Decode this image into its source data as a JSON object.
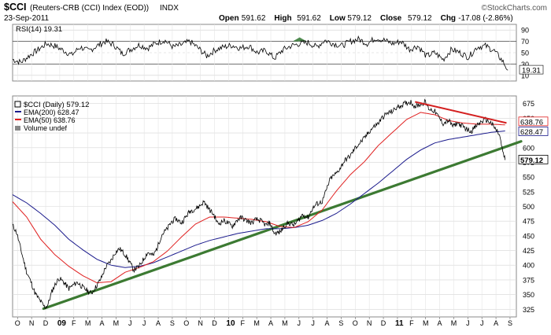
{
  "header": {
    "symbol": "$CCI",
    "name": "(Reuters-CRB (CCI) Index (EOD))",
    "exchange": "INDX",
    "date": "23-Sep-2011",
    "brand": "©StockCharts.com",
    "ohlc": [
      {
        "label": "Open",
        "value": "591.62"
      },
      {
        "label": "High",
        "value": "591.62"
      },
      {
        "label": "Low",
        "value": "579.12"
      },
      {
        "label": "Close",
        "value": "579.12"
      },
      {
        "label": "Chg",
        "value": "-17.08 (-2.86%)"
      }
    ]
  },
  "rsi": {
    "label": "RSI(14) 19.31",
    "last_tag": "19.31",
    "ticks": [
      90,
      70,
      50,
      30,
      10
    ],
    "overbought": 70,
    "oversold": 30,
    "baseline_ylim": [
      0,
      100
    ]
  },
  "legend": {
    "price": "$CCI (Daily) 579.12",
    "ema200": "EMA(200) 628.47",
    "ema50": "EMA(50) 638.76",
    "volume": "Volume undef"
  },
  "colors": {
    "price": "#000000",
    "ema200": "#1a1a8c",
    "ema50": "#e02020",
    "trendline": "#3c7a32",
    "resistance": "#d42020",
    "grid": "#d6d6d6",
    "frame": "#888888"
  },
  "tags": {
    "close": "579.12",
    "ema50": "638.76",
    "ema200": "628.47"
  },
  "chart_data": {
    "type": "line",
    "title": "$CCI (Reuters-CRB (CCI) Index (EOD)) INDX",
    "x_unit": "month index (0 = Oct 2008)",
    "x_range": [
      0,
      35.8
    ],
    "ylim": [
      312,
      688
    ],
    "y_ticks": [
      325,
      350,
      375,
      400,
      425,
      450,
      475,
      500,
      525,
      550,
      575,
      600,
      625,
      650,
      675
    ],
    "x_tick_labels": [
      "O",
      "N",
      "D",
      "09",
      "F",
      "M",
      "A",
      "M",
      "J",
      "J",
      "A",
      "S",
      "O",
      "N",
      "D",
      "10",
      "F",
      "M",
      "A",
      "M",
      "J",
      "J",
      "A",
      "S",
      "O",
      "N",
      "D",
      "11",
      "F",
      "M",
      "A",
      "M",
      "J",
      "J",
      "A",
      "S"
    ],
    "series": [
      {
        "name": "$CCI (Daily)",
        "anchors": [
          [
            0,
            468
          ],
          [
            0.3,
            455
          ],
          [
            0.6,
            425
          ],
          [
            1.0,
            388
          ],
          [
            1.3,
            372
          ],
          [
            1.6,
            352
          ],
          [
            2.0,
            338
          ],
          [
            2.3,
            328
          ],
          [
            2.5,
            332
          ],
          [
            2.8,
            356
          ],
          [
            3.0,
            366
          ],
          [
            3.3,
            378
          ],
          [
            3.6,
            372
          ],
          [
            4.0,
            360
          ],
          [
            4.3,
            366
          ],
          [
            4.6,
            371
          ],
          [
            5.0,
            362
          ],
          [
            5.3,
            357
          ],
          [
            5.6,
            352
          ],
          [
            6.0,
            366
          ],
          [
            6.3,
            378
          ],
          [
            6.6,
            396
          ],
          [
            7.0,
            408
          ],
          [
            7.3,
            422
          ],
          [
            7.6,
            428
          ],
          [
            8.0,
            418
          ],
          [
            8.3,
            406
          ],
          [
            8.6,
            392
          ],
          [
            9.0,
            398
          ],
          [
            9.3,
            410
          ],
          [
            9.6,
            422
          ],
          [
            10.0,
            416
          ],
          [
            10.3,
            431
          ],
          [
            10.6,
            452
          ],
          [
            11.0,
            462
          ],
          [
            11.3,
            474
          ],
          [
            11.6,
            479
          ],
          [
            12.0,
            472
          ],
          [
            12.3,
            482
          ],
          [
            12.6,
            492
          ],
          [
            13.0,
            496
          ],
          [
            13.3,
            501
          ],
          [
            13.6,
            508
          ],
          [
            14.0,
            494
          ],
          [
            14.3,
            486
          ],
          [
            14.6,
            470
          ],
          [
            15.0,
            476
          ],
          [
            15.3,
            472
          ],
          [
            15.6,
            466
          ],
          [
            16.0,
            478
          ],
          [
            16.3,
            481
          ],
          [
            16.6,
            476
          ],
          [
            17.0,
            472
          ],
          [
            17.3,
            478
          ],
          [
            17.6,
            476
          ],
          [
            18.0,
            468
          ],
          [
            18.3,
            472
          ],
          [
            18.6,
            454
          ],
          [
            19.0,
            456
          ],
          [
            19.3,
            466
          ],
          [
            19.6,
            472
          ],
          [
            20.0,
            468
          ],
          [
            20.3,
            476
          ],
          [
            20.6,
            486
          ],
          [
            21.0,
            481
          ],
          [
            21.3,
            496
          ],
          [
            21.6,
            504
          ],
          [
            22.0,
            508
          ],
          [
            22.3,
            528
          ],
          [
            22.6,
            548
          ],
          [
            23.0,
            556
          ],
          [
            23.3,
            566
          ],
          [
            23.6,
            578
          ],
          [
            24.0,
            586
          ],
          [
            24.3,
            598
          ],
          [
            24.6,
            606
          ],
          [
            25.0,
            616
          ],
          [
            25.3,
            626
          ],
          [
            25.6,
            634
          ],
          [
            26.0,
            642
          ],
          [
            26.3,
            652
          ],
          [
            26.6,
            658
          ],
          [
            27.0,
            662
          ],
          [
            27.3,
            668
          ],
          [
            27.6,
            672
          ],
          [
            28.0,
            676
          ],
          [
            28.3,
            678
          ],
          [
            28.6,
            670
          ],
          [
            29.0,
            674
          ],
          [
            29.3,
            678
          ],
          [
            29.6,
            666
          ],
          [
            30.0,
            662
          ],
          [
            30.3,
            651
          ],
          [
            30.6,
            641
          ],
          [
            31.0,
            646
          ],
          [
            31.3,
            636
          ],
          [
            31.6,
            642
          ],
          [
            32.0,
            636
          ],
          [
            32.3,
            631
          ],
          [
            32.6,
            628
          ],
          [
            33.0,
            638
          ],
          [
            33.3,
            644
          ],
          [
            33.6,
            648
          ],
          [
            34.0,
            642
          ],
          [
            34.3,
            632
          ],
          [
            34.6,
            622
          ],
          [
            34.8,
            596
          ],
          [
            35.0,
            579
          ]
        ]
      },
      {
        "name": "EMA(50)",
        "anchors": [
          [
            0,
            508
          ],
          [
            1,
            482
          ],
          [
            2,
            444
          ],
          [
            3,
            418
          ],
          [
            4,
            398
          ],
          [
            5,
            382
          ],
          [
            6,
            370
          ],
          [
            7,
            372
          ],
          [
            8,
            388
          ],
          [
            9,
            396
          ],
          [
            10,
            406
          ],
          [
            11,
            424
          ],
          [
            12,
            448
          ],
          [
            13,
            470
          ],
          [
            14,
            482
          ],
          [
            15,
            482
          ],
          [
            16,
            480
          ],
          [
            17,
            478
          ],
          [
            18,
            474
          ],
          [
            19,
            466
          ],
          [
            20,
            464
          ],
          [
            21,
            474
          ],
          [
            22,
            494
          ],
          [
            23,
            526
          ],
          [
            24,
            554
          ],
          [
            25,
            576
          ],
          [
            26,
            604
          ],
          [
            27,
            626
          ],
          [
            28,
            648
          ],
          [
            29,
            660
          ],
          [
            30,
            656
          ],
          [
            31,
            646
          ],
          [
            32,
            642
          ],
          [
            33,
            640
          ],
          [
            34,
            640
          ],
          [
            35,
            638.76
          ]
        ]
      },
      {
        "name": "EMA(200)",
        "anchors": [
          [
            0,
            520
          ],
          [
            1,
            506
          ],
          [
            2,
            488
          ],
          [
            3,
            468
          ],
          [
            4,
            444
          ],
          [
            5,
            426
          ],
          [
            6,
            410
          ],
          [
            7,
            400
          ],
          [
            8,
            396
          ],
          [
            9,
            398
          ],
          [
            10,
            404
          ],
          [
            11,
            414
          ],
          [
            12,
            424
          ],
          [
            13,
            434
          ],
          [
            14,
            442
          ],
          [
            15,
            448
          ],
          [
            16,
            454
          ],
          [
            17,
            458
          ],
          [
            18,
            462
          ],
          [
            19,
            462
          ],
          [
            20,
            464
          ],
          [
            21,
            468
          ],
          [
            22,
            476
          ],
          [
            23,
            488
          ],
          [
            24,
            504
          ],
          [
            25,
            522
          ],
          [
            26,
            540
          ],
          [
            27,
            560
          ],
          [
            28,
            580
          ],
          [
            29,
            596
          ],
          [
            30,
            608
          ],
          [
            31,
            614
          ],
          [
            32,
            618
          ],
          [
            33,
            622
          ],
          [
            34,
            626
          ],
          [
            35,
            628.47
          ]
        ]
      }
    ],
    "trendlines": [
      {
        "name": "support",
        "from": [
          2.2,
          326
        ],
        "to": [
          35.8,
          608
        ]
      },
      {
        "name": "resistance",
        "from": [
          28.6,
          678
        ],
        "to": [
          35.1,
          642
        ]
      }
    ],
    "rsi_anchors": [
      [
        0,
        38
      ],
      [
        0.6,
        33
      ],
      [
        1.2,
        45
      ],
      [
        1.8,
        55
      ],
      [
        2.4,
        66
      ],
      [
        3,
        62
      ],
      [
        3.6,
        54
      ],
      [
        4.2,
        46
      ],
      [
        4.8,
        60
      ],
      [
        5.4,
        53
      ],
      [
        6,
        62
      ],
      [
        6.6,
        70
      ],
      [
        7.2,
        64
      ],
      [
        7.8,
        48
      ],
      [
        8.4,
        56
      ],
      [
        9,
        64
      ],
      [
        9.6,
        58
      ],
      [
        10.2,
        67
      ],
      [
        10.8,
        72
      ],
      [
        11.4,
        60
      ],
      [
        12,
        64
      ],
      [
        12.6,
        70
      ],
      [
        13.2,
        58
      ],
      [
        13.8,
        44
      ],
      [
        14.4,
        55
      ],
      [
        15,
        60
      ],
      [
        15.6,
        63
      ],
      [
        16.2,
        58
      ],
      [
        16.8,
        62
      ],
      [
        17.4,
        50
      ],
      [
        18,
        54
      ],
      [
        18.6,
        40
      ],
      [
        19.2,
        55
      ],
      [
        19.8,
        62
      ],
      [
        20.4,
        66
      ],
      [
        21,
        68
      ],
      [
        21.6,
        60
      ],
      [
        22.2,
        72
      ],
      [
        22.8,
        66
      ],
      [
        23.4,
        62
      ],
      [
        24,
        70
      ],
      [
        24.6,
        74
      ],
      [
        25.2,
        66
      ],
      [
        25.8,
        76
      ],
      [
        26.4,
        72
      ],
      [
        27,
        66
      ],
      [
        27.6,
        70
      ],
      [
        28.2,
        56
      ],
      [
        28.8,
        62
      ],
      [
        29.4,
        44
      ],
      [
        30,
        50
      ],
      [
        30.6,
        38
      ],
      [
        31.2,
        56
      ],
      [
        31.8,
        50
      ],
      [
        32.4,
        42
      ],
      [
        33,
        60
      ],
      [
        33.6,
        62
      ],
      [
        34.2,
        54
      ],
      [
        34.8,
        36
      ],
      [
        35.2,
        19.31
      ]
    ]
  }
}
